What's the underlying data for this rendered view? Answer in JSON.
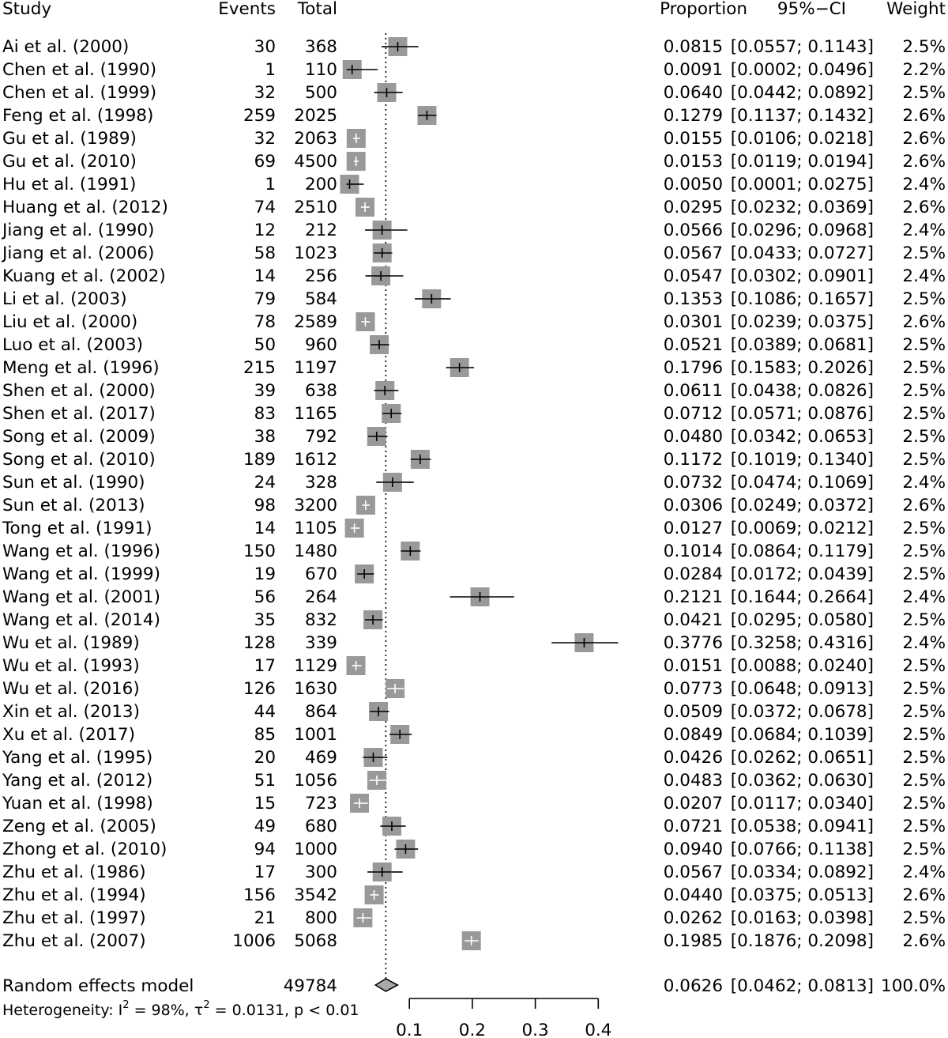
{
  "chart_data": {
    "type": "forest",
    "columns": {
      "study": "Study",
      "events": "Events",
      "total": "Total",
      "proportion": "Proportion",
      "ci": "95%−CI",
      "weight": "Weight"
    },
    "studies": [
      {
        "study": "Ai et al. (2000)",
        "events": "30",
        "total": "368",
        "proportion": 0.0815,
        "prop_text": "0.0815",
        "lower": 0.0557,
        "upper": 0.1143,
        "ci_text": "[0.0557; 0.1143]",
        "weight": "2.5%"
      },
      {
        "study": "Chen et al.  (1990)",
        "events": "1",
        "total": "110",
        "proportion": 0.0091,
        "prop_text": "0.0091",
        "lower": 0.0002,
        "upper": 0.0496,
        "ci_text": "[0.0002; 0.0496]",
        "weight": "2.2%"
      },
      {
        "study": "Chen et al.  (1999)",
        "events": "32",
        "total": "500",
        "proportion": 0.064,
        "prop_text": "0.0640",
        "lower": 0.0442,
        "upper": 0.0892,
        "ci_text": "[0.0442; 0.0892]",
        "weight": "2.5%"
      },
      {
        "study": "Feng et al. (1998)",
        "events": "259",
        "total": "2025",
        "proportion": 0.1279,
        "prop_text": "0.1279",
        "lower": 0.1137,
        "upper": 0.1432,
        "ci_text": "[0.1137; 0.1432]",
        "weight": "2.6%"
      },
      {
        "study": "Gu et al. (1989)",
        "events": "32",
        "total": "2063",
        "proportion": 0.0155,
        "prop_text": "0.0155",
        "lower": 0.0106,
        "upper": 0.0218,
        "ci_text": "[0.0106; 0.0218]",
        "weight": "2.6%"
      },
      {
        "study": "Gu et al. (2010)",
        "events": "69",
        "total": "4500",
        "proportion": 0.0153,
        "prop_text": "0.0153",
        "lower": 0.0119,
        "upper": 0.0194,
        "ci_text": "[0.0119; 0.0194]",
        "weight": "2.6%"
      },
      {
        "study": "Hu et al. (1991)",
        "events": "1",
        "total": "200",
        "proportion": 0.005,
        "prop_text": "0.0050",
        "lower": 0.0001,
        "upper": 0.0275,
        "ci_text": "[0.0001; 0.0275]",
        "weight": "2.4%"
      },
      {
        "study": "Huang et al. (2012)",
        "events": "74",
        "total": "2510",
        "proportion": 0.0295,
        "prop_text": "0.0295",
        "lower": 0.0232,
        "upper": 0.0369,
        "ci_text": "[0.0232; 0.0369]",
        "weight": "2.6%"
      },
      {
        "study": "Jiang et al. (1990)",
        "events": "12",
        "total": "212",
        "proportion": 0.0566,
        "prop_text": "0.0566",
        "lower": 0.0296,
        "upper": 0.0968,
        "ci_text": "[0.0296; 0.0968]",
        "weight": "2.4%"
      },
      {
        "study": "Jiang et al. (2006)",
        "events": "58",
        "total": "1023",
        "proportion": 0.0567,
        "prop_text": "0.0567",
        "lower": 0.0433,
        "upper": 0.0727,
        "ci_text": "[0.0433; 0.0727]",
        "weight": "2.5%"
      },
      {
        "study": "Kuang et al. (2002)",
        "events": "14",
        "total": "256",
        "proportion": 0.0547,
        "prop_text": "0.0547",
        "lower": 0.0302,
        "upper": 0.0901,
        "ci_text": "[0.0302; 0.0901]",
        "weight": "2.4%"
      },
      {
        "study": "Li et al. (2003)",
        "events": "79",
        "total": "584",
        "proportion": 0.1353,
        "prop_text": "0.1353",
        "lower": 0.1086,
        "upper": 0.1657,
        "ci_text": "[0.1086; 0.1657]",
        "weight": "2.5%"
      },
      {
        "study": "Liu et al. (2000)",
        "events": "78",
        "total": "2589",
        "proportion": 0.0301,
        "prop_text": "0.0301",
        "lower": 0.0239,
        "upper": 0.0375,
        "ci_text": "[0.0239; 0.0375]",
        "weight": "2.6%"
      },
      {
        "study": "Luo et al. (2003)",
        "events": "50",
        "total": "960",
        "proportion": 0.0521,
        "prop_text": "0.0521",
        "lower": 0.0389,
        "upper": 0.0681,
        "ci_text": "[0.0389; 0.0681]",
        "weight": "2.5%"
      },
      {
        "study": "Meng et al. (1996)",
        "events": "215",
        "total": "1197",
        "proportion": 0.1796,
        "prop_text": "0.1796",
        "lower": 0.1583,
        "upper": 0.2026,
        "ci_text": "[0.1583; 0.2026]",
        "weight": "2.5%"
      },
      {
        "study": "Shen et al. (2000)",
        "events": "39",
        "total": "638",
        "proportion": 0.0611,
        "prop_text": "0.0611",
        "lower": 0.0438,
        "upper": 0.0826,
        "ci_text": "[0.0438; 0.0826]",
        "weight": "2.5%"
      },
      {
        "study": "Shen et al. (2017)",
        "events": "83",
        "total": "1165",
        "proportion": 0.0712,
        "prop_text": "0.0712",
        "lower": 0.0571,
        "upper": 0.0876,
        "ci_text": "[0.0571; 0.0876]",
        "weight": "2.5%"
      },
      {
        "study": "Song et al. (2009)",
        "events": "38",
        "total": "792",
        "proportion": 0.048,
        "prop_text": "0.0480",
        "lower": 0.0342,
        "upper": 0.0653,
        "ci_text": "[0.0342; 0.0653]",
        "weight": "2.5%"
      },
      {
        "study": "Song et al. (2010)",
        "events": "189",
        "total": "1612",
        "proportion": 0.1172,
        "prop_text": "0.1172",
        "lower": 0.1019,
        "upper": 0.134,
        "ci_text": "[0.1019; 0.1340]",
        "weight": "2.5%"
      },
      {
        "study": "Sun et al. (1990)",
        "events": "24",
        "total": "328",
        "proportion": 0.0732,
        "prop_text": "0.0732",
        "lower": 0.0474,
        "upper": 0.1069,
        "ci_text": "[0.0474; 0.1069]",
        "weight": "2.4%"
      },
      {
        "study": "Sun et al. (2013)",
        "events": "98",
        "total": "3200",
        "proportion": 0.0306,
        "prop_text": "0.0306",
        "lower": 0.0249,
        "upper": 0.0372,
        "ci_text": "[0.0249; 0.0372]",
        "weight": "2.6%"
      },
      {
        "study": "Tong et al. (1991)",
        "events": "14",
        "total": "1105",
        "proportion": 0.0127,
        "prop_text": "0.0127",
        "lower": 0.0069,
        "upper": 0.0212,
        "ci_text": "[0.0069; 0.0212]",
        "weight": "2.5%"
      },
      {
        "study": "Wang et al. (1996)",
        "events": "150",
        "total": "1480",
        "proportion": 0.1014,
        "prop_text": "0.1014",
        "lower": 0.0864,
        "upper": 0.1179,
        "ci_text": "[0.0864; 0.1179]",
        "weight": "2.5%"
      },
      {
        "study": "Wang et al. (1999)",
        "events": "19",
        "total": "670",
        "proportion": 0.0284,
        "prop_text": "0.0284",
        "lower": 0.0172,
        "upper": 0.0439,
        "ci_text": "[0.0172; 0.0439]",
        "weight": "2.5%"
      },
      {
        "study": "Wang et al. (2001)",
        "events": "56",
        "total": "264",
        "proportion": 0.2121,
        "prop_text": "0.2121",
        "lower": 0.1644,
        "upper": 0.2664,
        "ci_text": "[0.1644; 0.2664]",
        "weight": "2.4%"
      },
      {
        "study": "Wang et al. (2014)",
        "events": "35",
        "total": "832",
        "proportion": 0.0421,
        "prop_text": "0.0421",
        "lower": 0.0295,
        "upper": 0.058,
        "ci_text": "[0.0295; 0.0580]",
        "weight": "2.5%"
      },
      {
        "study": "Wu et al. (1989)",
        "events": "128",
        "total": "339",
        "proportion": 0.3776,
        "prop_text": "0.3776",
        "lower": 0.3258,
        "upper": 0.4316,
        "ci_text": "[0.3258; 0.4316]",
        "weight": "2.4%"
      },
      {
        "study": "Wu et al. (1993)",
        "events": "17",
        "total": "1129",
        "proportion": 0.0151,
        "prop_text": "0.0151",
        "lower": 0.0088,
        "upper": 0.024,
        "ci_text": "[0.0088; 0.0240]",
        "weight": "2.5%"
      },
      {
        "study": "Wu et al. (2016)",
        "events": "126",
        "total": "1630",
        "proportion": 0.0773,
        "prop_text": "0.0773",
        "lower": 0.0648,
        "upper": 0.0913,
        "ci_text": "[0.0648; 0.0913]",
        "weight": "2.5%"
      },
      {
        "study": "Xin et al. (2013)",
        "events": "44",
        "total": "864",
        "proportion": 0.0509,
        "prop_text": "0.0509",
        "lower": 0.0372,
        "upper": 0.0678,
        "ci_text": "[0.0372; 0.0678]",
        "weight": "2.5%"
      },
      {
        "study": "Xu et al. (2017)",
        "events": "85",
        "total": "1001",
        "proportion": 0.0849,
        "prop_text": "0.0849",
        "lower": 0.0684,
        "upper": 0.1039,
        "ci_text": "[0.0684; 0.1039]",
        "weight": "2.5%"
      },
      {
        "study": "Yang et al. (1995)",
        "events": "20",
        "total": "469",
        "proportion": 0.0426,
        "prop_text": "0.0426",
        "lower": 0.0262,
        "upper": 0.0651,
        "ci_text": "[0.0262; 0.0651]",
        "weight": "2.5%"
      },
      {
        "study": "Yang et al. (2012)",
        "events": "51",
        "total": "1056",
        "proportion": 0.0483,
        "prop_text": "0.0483",
        "lower": 0.0362,
        "upper": 0.063,
        "ci_text": "[0.0362; 0.0630]",
        "weight": "2.5%"
      },
      {
        "study": "Yuan et al. (1998)",
        "events": "15",
        "total": "723",
        "proportion": 0.0207,
        "prop_text": "0.0207",
        "lower": 0.0117,
        "upper": 0.034,
        "ci_text": "[0.0117; 0.0340]",
        "weight": "2.5%"
      },
      {
        "study": "Zeng et al. (2005)",
        "events": "49",
        "total": "680",
        "proportion": 0.0721,
        "prop_text": "0.0721",
        "lower": 0.0538,
        "upper": 0.0941,
        "ci_text": "[0.0538; 0.0941]",
        "weight": "2.5%"
      },
      {
        "study": "Zhong et al. (2010)",
        "events": "94",
        "total": "1000",
        "proportion": 0.094,
        "prop_text": "0.0940",
        "lower": 0.0766,
        "upper": 0.1138,
        "ci_text": "[0.0766; 0.1138]",
        "weight": "2.5%"
      },
      {
        "study": "Zhu et al. (1986)",
        "events": "17",
        "total": "300",
        "proportion": 0.0567,
        "prop_text": "0.0567",
        "lower": 0.0334,
        "upper": 0.0892,
        "ci_text": "[0.0334; 0.0892]",
        "weight": "2.4%"
      },
      {
        "study": "Zhu et al. (1994)",
        "events": "156",
        "total": "3542",
        "proportion": 0.044,
        "prop_text": "0.0440",
        "lower": 0.0375,
        "upper": 0.0513,
        "ci_text": "[0.0375; 0.0513]",
        "weight": "2.6%"
      },
      {
        "study": "Zhu et al. (1997)",
        "events": "21",
        "total": "800",
        "proportion": 0.0262,
        "prop_text": "0.0262",
        "lower": 0.0163,
        "upper": 0.0398,
        "ci_text": "[0.0163; 0.0398]",
        "weight": "2.5%"
      },
      {
        "study": "Zhu et al. (2007)",
        "events": "1006",
        "total": "5068",
        "proportion": 0.1985,
        "prop_text": "0.1985",
        "lower": 0.1876,
        "upper": 0.2098,
        "ci_text": "[0.1876; 0.2098]",
        "weight": "2.6%"
      }
    ],
    "pooled": {
      "study": "Random effects model",
      "total": "49784",
      "proportion": 0.0626,
      "prop_text": "0.0626",
      "lower": 0.0462,
      "upper": 0.0813,
      "ci_text": "[0.0462; 0.0813]",
      "weight": "100.0%"
    },
    "heterogeneity": {
      "prefix": "Heterogeneity: I",
      "i2_sup": "2",
      "i2_value": " = 98%, ",
      "tau_symbol": "τ",
      "tau_sup": "2",
      "tau_value": " = 0.0131, p < 0.01"
    },
    "x_axis": {
      "ticks": [
        0.1,
        0.2,
        0.3,
        0.4
      ],
      "tick_labels": [
        "0.1",
        "0.2",
        "0.3",
        "0.4"
      ]
    },
    "reference_line": 0.0626,
    "colors": {
      "box": "#999999",
      "diamond": "#a9a9a9",
      "line": "#000000",
      "inner_light": "#ffffff"
    }
  }
}
